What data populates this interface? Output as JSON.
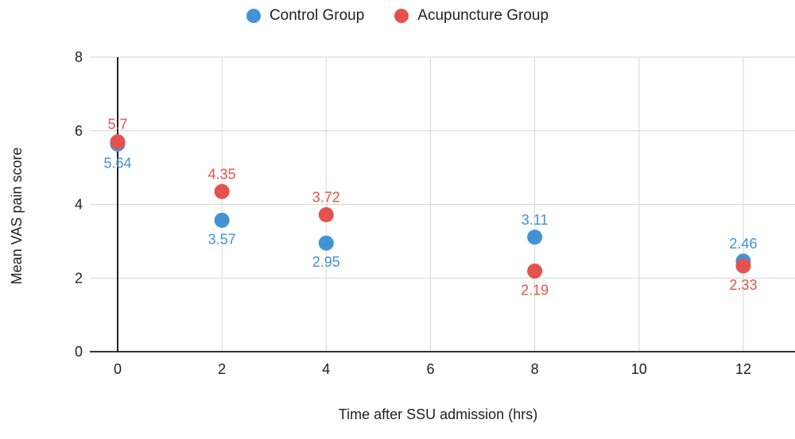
{
  "chart_data": {
    "type": "scatter",
    "xlabel": "Time after SSU admission (hrs)",
    "ylabel": "Mean VAS pain score",
    "xlim": [
      -0.5,
      13
    ],
    "ylim": [
      0,
      8
    ],
    "x_ticks": [
      0,
      2,
      4,
      6,
      8,
      10,
      12
    ],
    "y_ticks": [
      0,
      2,
      4,
      6,
      8
    ],
    "grid": true,
    "legend_position": "top",
    "colors": {
      "control": "#4193D6",
      "acupuncture": "#E3534D",
      "gridline": "#d6d6d6",
      "axis_line": "#333333",
      "text": "#202124"
    },
    "series": [
      {
        "name": "Control Group",
        "color": "#4193D6",
        "x": [
          0,
          2,
          4,
          8,
          12
        ],
        "y": [
          5.64,
          3.57,
          2.95,
          3.11,
          2.46
        ],
        "labels": [
          "5.64",
          "3.57",
          "2.95",
          "3.11",
          "2.46"
        ],
        "label_position": [
          "below",
          "below",
          "below",
          "above",
          "above"
        ]
      },
      {
        "name": "Acupuncture Group",
        "color": "#E3534D",
        "x": [
          0,
          2,
          4,
          8,
          12
        ],
        "y": [
          5.7,
          4.35,
          3.72,
          2.19,
          2.33
        ],
        "labels": [
          "5.7",
          "4.35",
          "3.72",
          "2.19",
          "2.33"
        ],
        "label_position": [
          "above",
          "above",
          "above",
          "below",
          "below"
        ]
      }
    ]
  }
}
